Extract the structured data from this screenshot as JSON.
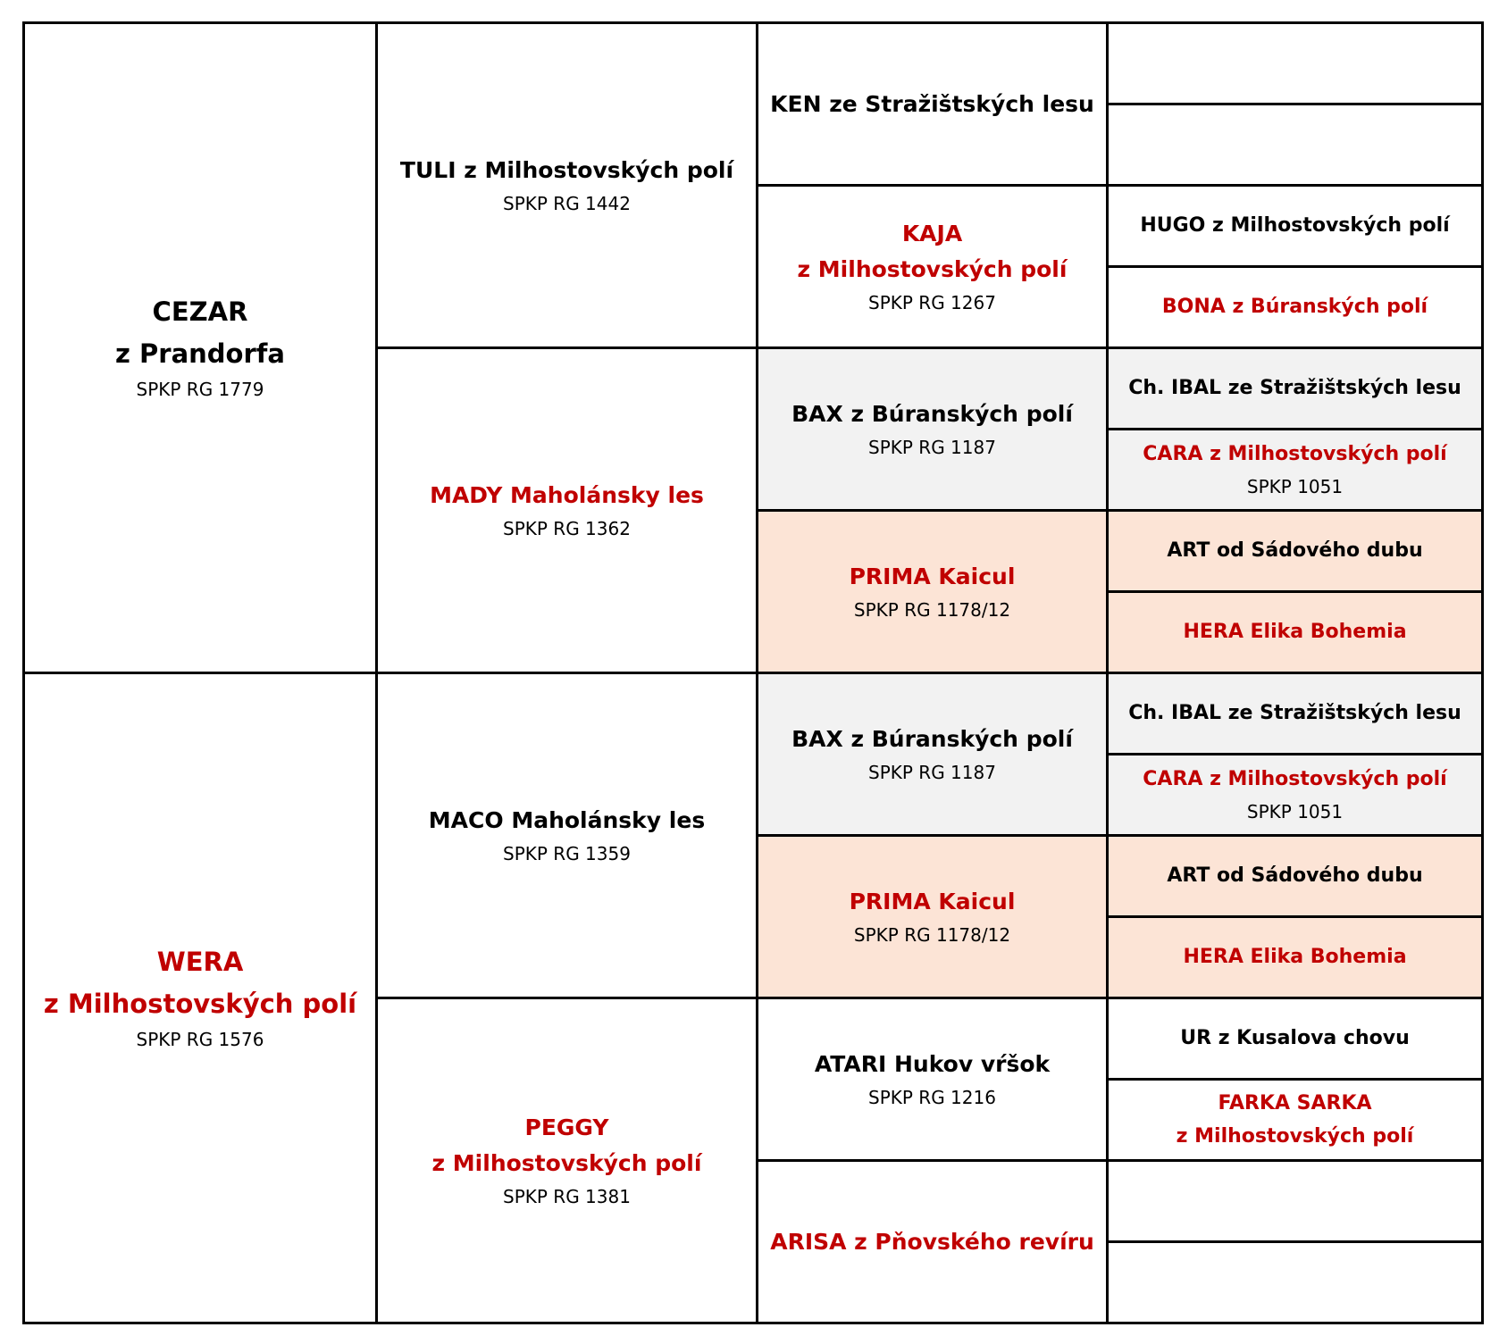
{
  "pedigree": {
    "parents": {
      "sire": {
        "name": "CEZAR",
        "name2": "z Prandorfa",
        "reg": "SPKP RG 1779"
      },
      "dam": {
        "name": "WERA",
        "name2": "z Milhostovských polí",
        "reg": "SPKP RG 1576"
      }
    },
    "grandparents": {
      "ss": {
        "name": "TULI z Milhostovských polí",
        "reg": "SPKP RG 1442"
      },
      "sd": {
        "name": "MADY Maholánsky les",
        "reg": "SPKP RG 1362"
      },
      "ds": {
        "name": "MACO Maholánsky les",
        "reg": "SPKP RG 1359"
      },
      "dd": {
        "name": "PEGGY",
        "name2": "z Milhostovských polí",
        "reg": "SPKP RG 1381"
      }
    },
    "great_grandparents": {
      "sss": {
        "name": "KEN ze Stražištských lesu"
      },
      "ssd": {
        "name": "KAJA",
        "name2": "z Milhostovských polí",
        "reg": "SPKP RG 1267"
      },
      "sds": {
        "name": "BAX z Búranských polí",
        "reg": "SPKP RG 1187"
      },
      "sdd": {
        "name": "PRIMA Kaicul",
        "reg": "SPKP RG 1178/12"
      },
      "dss": {
        "name": "BAX z Búranských polí",
        "reg": "SPKP RG 1187"
      },
      "dsd": {
        "name": "PRIMA Kaicul",
        "reg": "SPKP RG 1178/12"
      },
      "dds": {
        "name": "ATARI Hukov vŕšok",
        "reg": "SPKP RG 1216"
      },
      "ddd": {
        "name": "ARISA z Pňovského revíru"
      }
    },
    "gg_grandparents": {
      "r3": {
        "name": "HUGO z Milhostovských polí"
      },
      "r4": {
        "name": "BONA z Búranských polí"
      },
      "r5": {
        "name": "Ch. IBAL ze Stražištských lesu"
      },
      "r6": {
        "name": "CARA z Milhostovských polí",
        "reg": "SPKP 1051"
      },
      "r7": {
        "name": "ART od Sádového dubu"
      },
      "r8": {
        "name": "HERA Elika Bohemia"
      },
      "r9": {
        "name": "Ch. IBAL ze Stražištských lesu"
      },
      "r10": {
        "name": "CARA z Milhostovských polí",
        "reg": "SPKP 1051"
      },
      "r11": {
        "name": "ART od Sádového dubu"
      },
      "r12": {
        "name": "HERA Elika Bohemia"
      },
      "r13": {
        "name": "UR z Kusalova chovu"
      },
      "r14": {
        "name": "FARKA SARKA",
        "name2": "z Milhostovských polí"
      }
    }
  },
  "colors": {
    "female": "#C00000",
    "male": "#000000",
    "line_grey": "#F2F2F2",
    "line_peach": "#FCE4D6",
    "border": "#000000"
  }
}
